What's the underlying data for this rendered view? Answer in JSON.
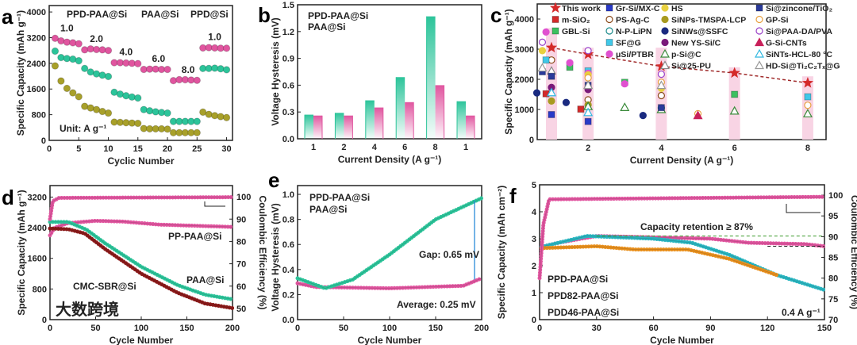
{
  "colors": {
    "pink": "#e0559f",
    "teal": "#2cc49a",
    "olive": "#a8a02a",
    "darkred": "#8b1a1a",
    "cyan": "#2ab5c0",
    "orange": "#e8901e",
    "green": "#3a9a2a",
    "blue": "#2a8ad8",
    "red": "#d42a2a",
    "hl": "#f8d4e4"
  },
  "watermark": "大数跨境",
  "chart_data": [
    {
      "panel": "a",
      "type": "scatter",
      "xlabel": "Cyclic Number",
      "ylabel": "Specific Capacity (mAh g⁻¹)",
      "xlim": [
        0,
        31
      ],
      "ylim": [
        0,
        4200
      ],
      "xticks": [
        0,
        5,
        10,
        15,
        20,
        25,
        30
      ],
      "yticks": [
        0,
        800,
        1600,
        2400,
        3200,
        4000
      ],
      "unit_label": "Unit: A g⁻¹",
      "rate_labels": [
        {
          "text": "1.0",
          "x": 3,
          "y": 3400
        },
        {
          "text": "2.0",
          "x": 8,
          "y": 3060
        },
        {
          "text": "4.0",
          "x": 13,
          "y": 2660
        },
        {
          "text": "6.0",
          "x": 18.5,
          "y": 2450
        },
        {
          "text": "8.0",
          "x": 23.5,
          "y": 2100
        },
        {
          "text": "1.0",
          "x": 28,
          "y": 3130
        }
      ],
      "series": [
        {
          "name": "PPD-PAA@Si",
          "color": "pink",
          "x": [
            1,
            2,
            3,
            4,
            5,
            6,
            7,
            8,
            9,
            10,
            11,
            12,
            13,
            14,
            15,
            16,
            17,
            18,
            19,
            20,
            21,
            22,
            23,
            24,
            25,
            26,
            27,
            28,
            29,
            30
          ],
          "y": [
            3180,
            3100,
            3060,
            3040,
            3010,
            2820,
            2850,
            2830,
            2820,
            2800,
            2420,
            2420,
            2410,
            2400,
            2390,
            2210,
            2220,
            2220,
            2210,
            2210,
            1860,
            1890,
            1890,
            1880,
            1870,
            2880,
            2890,
            2880,
            2870,
            2870
          ]
        },
        {
          "name": "PAA@Si",
          "color": "teal",
          "x": [
            1,
            2,
            3,
            4,
            5,
            6,
            7,
            8,
            9,
            10,
            11,
            12,
            13,
            14,
            15,
            16,
            17,
            18,
            19,
            20,
            21,
            22,
            23,
            24,
            25,
            26,
            27,
            28,
            29,
            30
          ],
          "y": [
            2780,
            2580,
            2550,
            2530,
            2480,
            2240,
            2130,
            2070,
            2030,
            1990,
            1500,
            1440,
            1390,
            1350,
            1320,
            960,
            920,
            890,
            870,
            850,
            590,
            590,
            590,
            590,
            590,
            2240,
            2240,
            2250,
            2230,
            2200
          ]
        },
        {
          "name": "PPD@Si",
          "color": "olive",
          "x": [
            1,
            2,
            3,
            4,
            5,
            6,
            7,
            8,
            9,
            10,
            11,
            12,
            13,
            14,
            15,
            16,
            17,
            18,
            19,
            20,
            21,
            22,
            23,
            24,
            25,
            26,
            27,
            28,
            29,
            30
          ],
          "y": [
            2320,
            1850,
            1620,
            1480,
            1360,
            1060,
            1010,
            960,
            900,
            850,
            570,
            560,
            550,
            540,
            530,
            370,
            360,
            360,
            360,
            350,
            240,
            240,
            240,
            240,
            240,
            880,
            810,
            770,
            740,
            710
          ]
        }
      ]
    },
    {
      "panel": "b",
      "type": "bar",
      "xlabel": "Current Density (A g⁻¹)",
      "ylabel": "Voltage Hysteresis (mV)",
      "ylim": [
        0,
        1.5
      ],
      "categories": [
        "1",
        "2",
        "4",
        "6",
        "8",
        "1"
      ],
      "yticks": [
        0.0,
        0.3,
        0.6,
        0.9,
        1.2,
        1.5
      ],
      "ytick_labels": [
        "0.0",
        "0.3",
        "0.6",
        "0.9",
        "1.2",
        "1.5"
      ],
      "series": [
        {
          "name": "PAA@Si",
          "color": "teal",
          "values": [
            0.27,
            0.29,
            0.43,
            0.69,
            1.37,
            0.42
          ]
        },
        {
          "name": "PPD-PAA@Si",
          "color": "pink",
          "values": [
            0.26,
            0.26,
            0.35,
            0.41,
            0.6,
            0.26
          ]
        }
      ]
    },
    {
      "panel": "c",
      "type": "scatter",
      "xlabel": "Current Density (A g⁻¹)",
      "ylabel": "Specific Capacity (mAh g⁻¹)",
      "xlim": [
        0.61,
        8.5
      ],
      "ylim": [
        0,
        4500
      ],
      "xticks": [
        2,
        4,
        6,
        8
      ],
      "yticks": [
        0,
        1000,
        2000,
        3000,
        4000
      ],
      "highlight_x": [
        1,
        2,
        4,
        6,
        8
      ],
      "series": [
        {
          "name": "This work",
          "color": "red",
          "marker": "star",
          "x": [
            1,
            2,
            4,
            6,
            8
          ],
          "y": [
            3050,
            2830,
            2430,
            2210,
            1880
          ]
        },
        {
          "name": "m-SiO₂",
          "color": "red",
          "marker": "square",
          "x": [
            0.85,
            1.8
          ],
          "y": [
            1520,
            1010
          ]
        },
        {
          "name": "GBL-Si",
          "color": "#3cc060",
          "marker": "square",
          "x": [
            1.5,
            3,
            6
          ],
          "y": [
            2400,
            1900,
            1500
          ]
        },
        {
          "name": "Gr-Si/MX-C",
          "color": "#2a3ac8",
          "marker": "square",
          "x": [
            1,
            2
          ],
          "y": [
            830,
            600
          ]
        },
        {
          "name": "PS-Ag-C",
          "color": "#8a4a1a",
          "marker": "ocircle",
          "x": [
            1,
            2,
            4
          ],
          "y": [
            2640,
            1320,
            1460
          ]
        },
        {
          "name": "N-P-LiPN",
          "color": "#1a8a8a",
          "marker": "ocircle",
          "x": [
            4
          ],
          "y": [
            1050
          ]
        },
        {
          "name": "SF@G",
          "color": "#40c8e8",
          "marker": "square",
          "x": [
            0.85,
            2,
            8
          ],
          "y": [
            2640,
            2280,
            1420
          ]
        },
        {
          "name": "μSi/PTBR",
          "color": "#e050d0",
          "marker": "circle",
          "x": [
            0.85,
            1.5,
            3,
            2
          ],
          "y": [
            3570,
            2550,
            1850,
            2200
          ]
        },
        {
          "name": "HS",
          "color": "#e8d040",
          "marker": "circle",
          "x": [
            0.75,
            4,
            2
          ],
          "y": [
            2950,
            1700,
            2150
          ]
        },
        {
          "name": "SiNPs-TMSPA-LCP",
          "color": "#a89a20",
          "marker": "circle",
          "x": [
            1,
            2
          ],
          "y": [
            1280,
            1150
          ]
        },
        {
          "name": "SiNWs@SSFC",
          "color": "#1a2a80",
          "marker": "circle",
          "x": [
            0.6,
            1.4,
            3.5
          ],
          "y": [
            1550,
            1230,
            800
          ]
        },
        {
          "name": "New YS-Si/C",
          "color": "#7a1a7a",
          "marker": "circle",
          "x": [
            1,
            2
          ],
          "y": [
            1730,
            1660
          ]
        },
        {
          "name": "p-Si@C",
          "color": "#3a8a3a",
          "marker": "otri",
          "x": [
            2,
            3,
            4,
            6,
            8
          ],
          "y": [
            1100,
            1070,
            1000,
            950,
            860
          ]
        },
        {
          "name": "Si@25-PU",
          "color": "#888888",
          "marker": "otri",
          "x": [
            1,
            2
          ],
          "y": [
            2280,
            1810
          ]
        },
        {
          "name": "Si@zincone/TiO₂",
          "color": "#2a3a9a",
          "marker": "square",
          "x": [
            0.75,
            1,
            2,
            4
          ],
          "y": [
            2250,
            2100,
            1800,
            1060
          ]
        },
        {
          "name": "GP-Si",
          "color": "#e8a040",
          "marker": "ocircle",
          "x": [
            2,
            4,
            8,
            5
          ],
          "y": [
            2050,
            1900,
            1140,
            860
          ]
        },
        {
          "name": "Si@PAA-DA/PVA",
          "color": "#9a40c8",
          "marker": "ocircle",
          "x": [
            0.75,
            2,
            4
          ],
          "y": [
            3230,
            2950,
            2170
          ]
        },
        {
          "name": "G-Si-CNTs",
          "color": "#c8205a",
          "marker": "tri",
          "x": [
            5
          ],
          "y": [
            800
          ]
        },
        {
          "name": "SiNTs-HCL-80 °C",
          "color": "#30b8e0",
          "marker": "otri",
          "x": [
            1,
            2
          ],
          "y": [
            1560,
            900
          ]
        },
        {
          "name": "HD-Si@Ti₂C₂Tₓ@G",
          "color": "#999999",
          "marker": "otri",
          "x": [
            0.75,
            2,
            4
          ],
          "y": [
            2380,
            1800,
            1800
          ]
        }
      ]
    },
    {
      "panel": "d",
      "type": "line",
      "xlabel": "Cycle Number",
      "ylabel": "Specific Capacity (mAh g⁻¹)",
      "y2label": "Coulombic Efficiency (%)",
      "xlim": [
        0,
        200
      ],
      "ylim": [
        0,
        3500
      ],
      "y2lim": [
        45,
        105
      ],
      "xticks": [
        0,
        50,
        100,
        150,
        200
      ],
      "yticks": [
        0,
        800,
        1600,
        2400,
        3200
      ],
      "y2ticks": [
        50,
        60,
        70,
        80,
        90,
        100
      ],
      "series": [
        {
          "name": "PP-PAA@Si",
          "color": "pink",
          "axis": "y",
          "x": [
            0,
            5,
            20,
            50,
            80,
            120,
            160,
            200
          ],
          "y": [
            2200,
            2400,
            2520,
            2580,
            2560,
            2480,
            2450,
            2420
          ]
        },
        {
          "name": "PAA@Si",
          "color": "teal",
          "axis": "y",
          "x": [
            0,
            20,
            40,
            60,
            100,
            140,
            170,
            200
          ],
          "y": [
            2550,
            2550,
            2350,
            2000,
            1380,
            900,
            650,
            530
          ]
        },
        {
          "name": "CMC-SBR@Si",
          "color": "darkred",
          "axis": "y",
          "x": [
            0,
            20,
            38,
            60,
            100,
            140,
            170,
            200
          ],
          "y": [
            2380,
            2360,
            2250,
            1850,
            1200,
            700,
            420,
            300
          ]
        },
        {
          "name": "CE",
          "color": "pink",
          "axis": "y2",
          "x": [
            0,
            3,
            10,
            200
          ],
          "y": [
            90,
            98,
            99.5,
            99.8
          ]
        }
      ]
    },
    {
      "panel": "e",
      "type": "line",
      "xlabel": "Cycle Number",
      "ylabel": "Voltage Hysteresis (mV)",
      "xlim": [
        0,
        200
      ],
      "ylim": [
        0,
        1.07
      ],
      "xticks": [
        0,
        50,
        100,
        150,
        200
      ],
      "yticks": [
        0,
        0.2,
        0.4,
        0.6,
        0.8,
        1.0
      ],
      "ytick_labels": [
        "0.0",
        "0.2",
        "0.4",
        "0.6",
        "0.8",
        "1.0"
      ],
      "gap_label": "Gap: 0.65 mV",
      "avg_label": "Average: 0.25 mV",
      "series": [
        {
          "name": "PPD-PAA@Si",
          "color": "pink",
          "x": [
            0,
            20,
            100,
            180,
            200
          ],
          "y": [
            0.29,
            0.26,
            0.25,
            0.27,
            0.33
          ]
        },
        {
          "name": "PAA@Si",
          "color": "teal",
          "x": [
            0,
            30,
            60,
            100,
            150,
            200
          ],
          "y": [
            0.33,
            0.25,
            0.32,
            0.52,
            0.8,
            0.97
          ]
        }
      ]
    },
    {
      "panel": "f",
      "type": "line",
      "xlabel": "Cycle Number",
      "ylabel": "Specific Capacity (mAh cm⁻²)",
      "y2label": "Coulombic Efficiency (%)",
      "xlim": [
        0,
        150
      ],
      "ylim": [
        0,
        5
      ],
      "y2lim": [
        70,
        102.5
      ],
      "xticks": [
        0,
        30,
        60,
        90,
        120,
        150
      ],
      "yticks": [
        0,
        1,
        2,
        3,
        4,
        5
      ],
      "y2ticks": [
        70,
        75,
        80,
        85,
        90,
        95,
        100
      ],
      "retention_label": "Capacity retention ≥ 87%",
      "rate_label": "0.4 A g⁻¹",
      "series": [
        {
          "name": "PPD-PAA@Si",
          "color": "pink",
          "axis": "y",
          "x": [
            1,
            10,
            30,
            60,
            90,
            110,
            140,
            150
          ],
          "y": [
            2.7,
            2.85,
            3.1,
            3.05,
            3.0,
            2.85,
            2.8,
            2.72
          ]
        },
        {
          "name": "PPD82-PAA@Si",
          "color": "cyan",
          "axis": "y",
          "x": [
            1,
            25,
            60,
            80,
            100,
            125,
            150
          ],
          "y": [
            2.7,
            3.1,
            3.0,
            2.85,
            2.4,
            1.65,
            1.1
          ]
        },
        {
          "name": "PDD46-PAA@Si",
          "color": "orange",
          "axis": "y",
          "x": [
            1,
            30,
            50,
            78,
            100,
            125
          ],
          "y": [
            2.65,
            2.72,
            2.6,
            2.6,
            2.25,
            1.65
          ]
        },
        {
          "name": "CE",
          "color": "pink",
          "axis": "y2",
          "x": [
            0,
            2,
            5,
            150
          ],
          "y": [
            80,
            93,
            99,
            99.6
          ]
        }
      ]
    }
  ]
}
